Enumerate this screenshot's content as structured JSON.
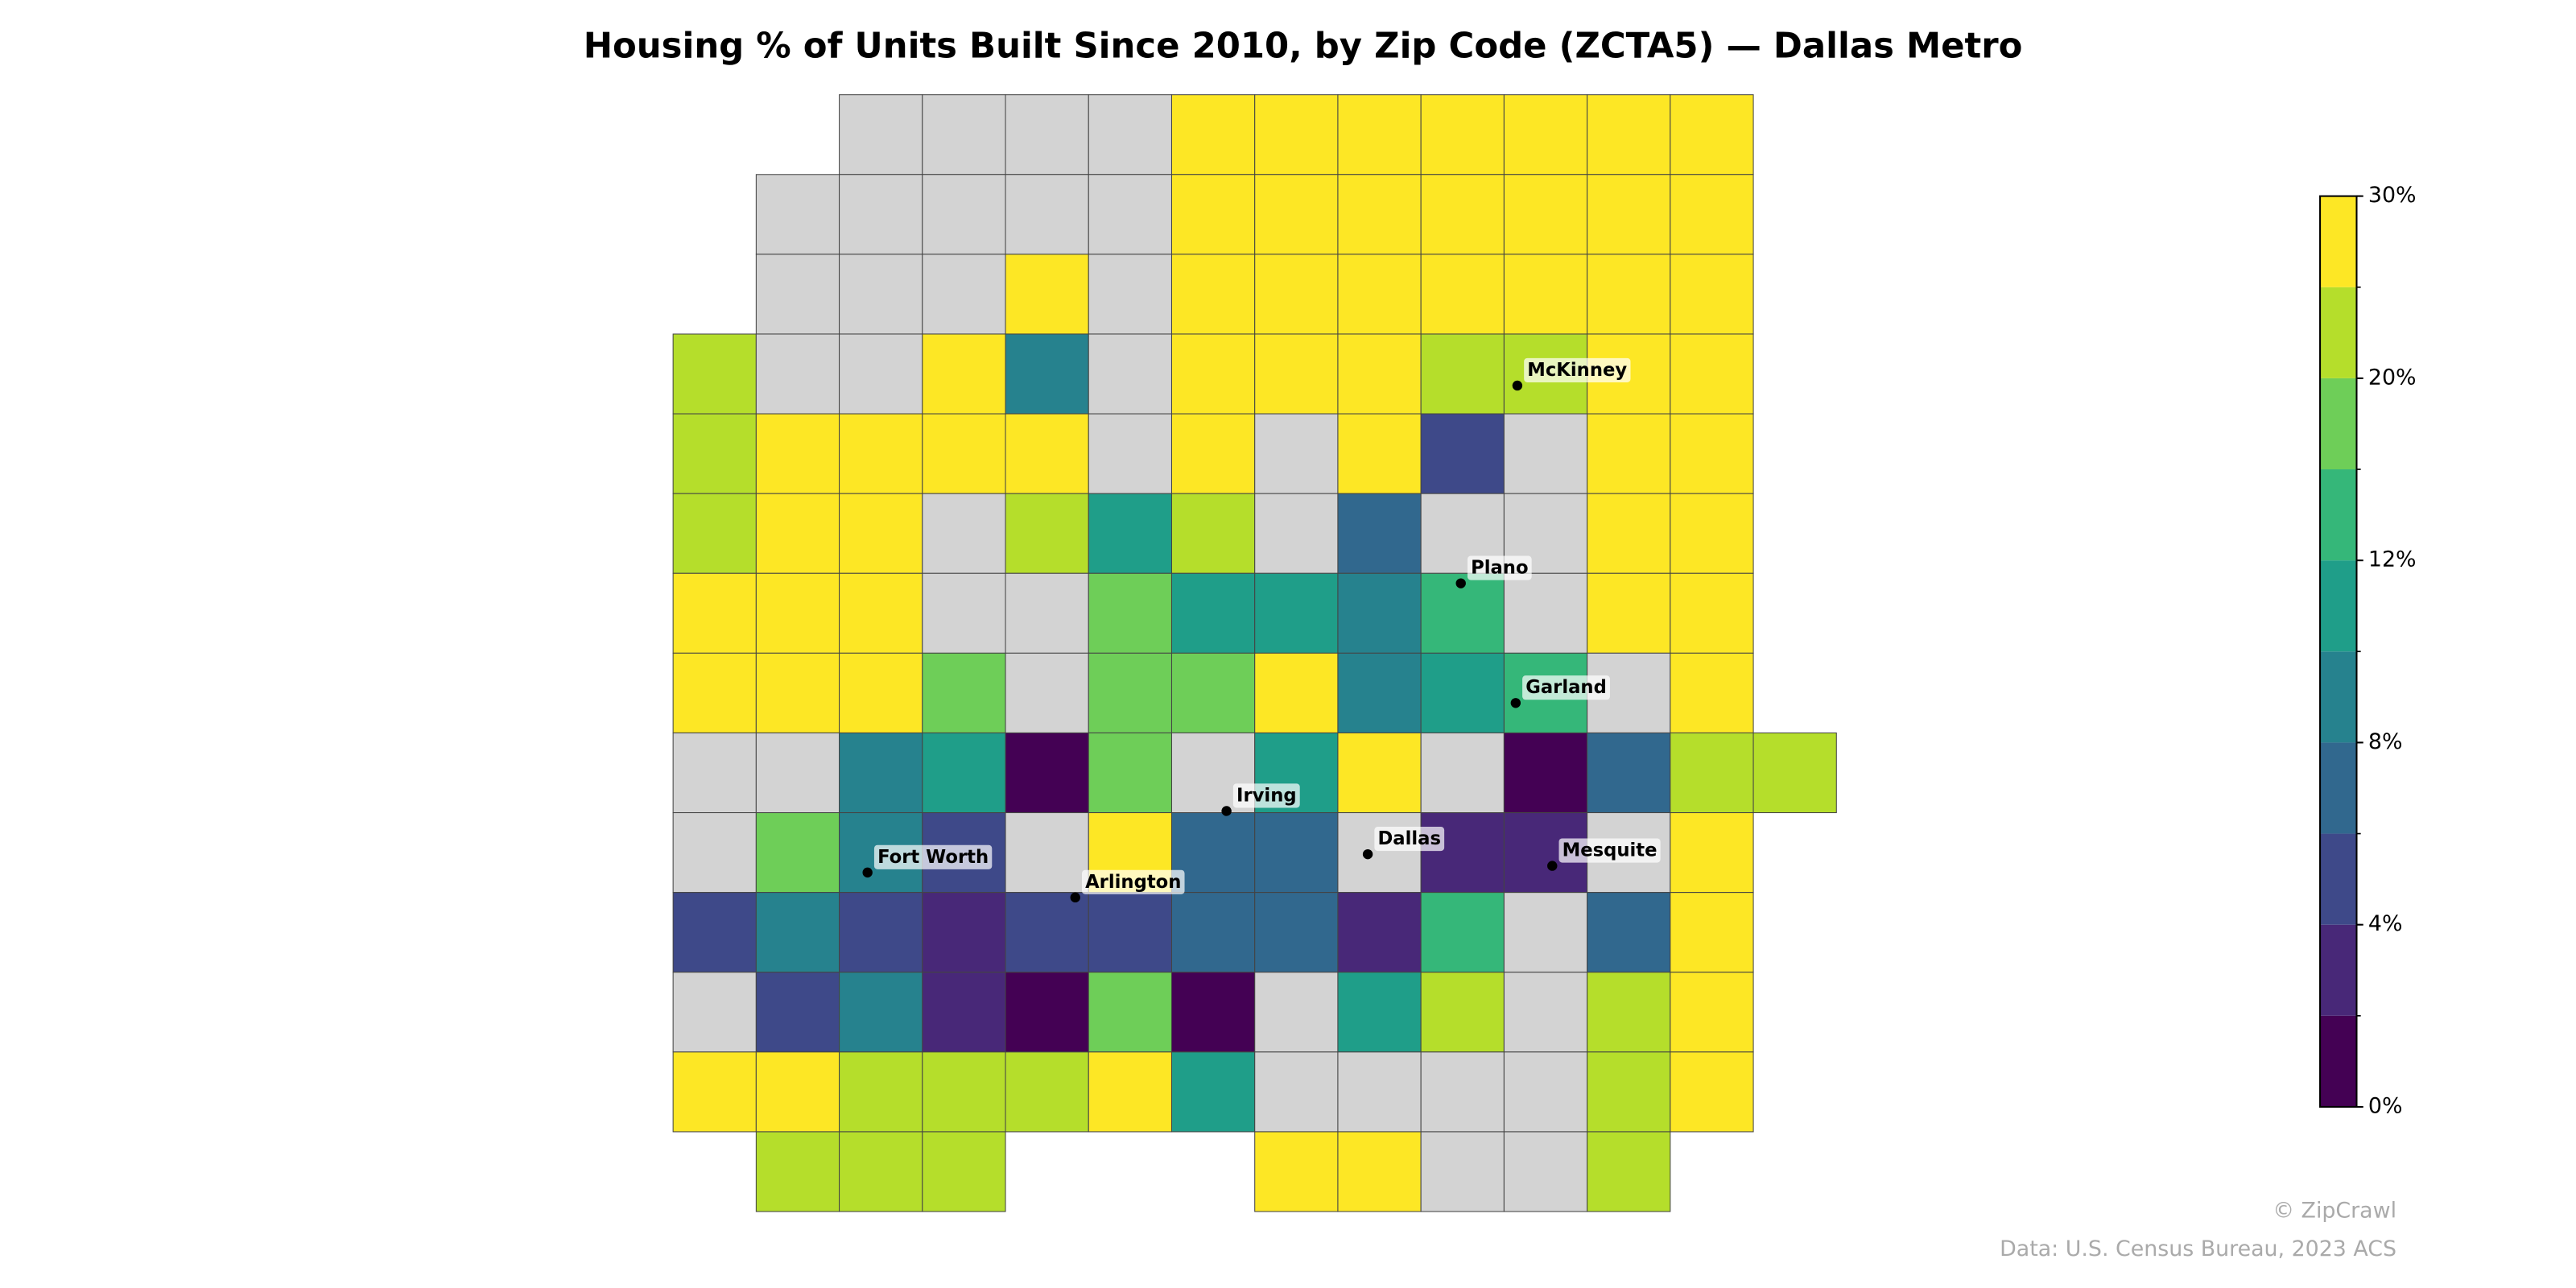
{
  "chart_data": {
    "type": "choropleth",
    "title": "Housing % of Units Built Since 2010, by Zip Code (ZCTA5) — Dallas Metro",
    "no_data_color": "#d3d3d3",
    "zones": [
      null,
      null,
      null,
      null,
      28,
      28,
      28,
      28,
      28,
      28,
      28,
      null,
      null,
      null,
      null,
      null,
      28,
      28,
      28,
      28,
      28,
      28,
      28,
      null,
      null,
      null,
      28,
      null,
      28,
      28,
      28,
      28,
      28,
      28,
      28,
      22,
      null,
      null,
      28,
      9,
      null,
      28,
      28,
      28,
      22,
      22,
      28,
      28,
      22,
      28,
      28,
      28,
      28,
      null,
      28,
      null,
      28,
      5,
      null,
      28,
      28,
      22,
      28,
      28,
      null,
      22,
      11,
      22,
      null,
      7,
      null,
      null,
      28,
      28,
      28,
      28,
      28,
      null,
      null,
      18,
      11,
      11,
      9,
      14,
      null,
      28,
      28,
      28,
      28,
      28,
      18,
      null,
      18,
      18,
      28,
      9,
      11,
      14,
      null,
      28,
      null,
      null,
      9,
      11,
      1,
      18,
      null,
      11,
      28,
      null,
      1,
      7,
      22,
      22,
      null,
      18,
      9,
      5,
      null,
      28,
      7,
      7,
      null,
      3,
      3,
      null,
      28,
      5,
      9,
      5,
      3,
      5,
      5,
      7,
      7,
      3,
      14,
      null,
      7,
      28,
      null,
      5,
      9,
      3,
      1,
      18,
      1,
      null,
      11,
      22,
      null,
      22,
      28,
      28,
      28,
      22,
      22,
      22,
      28,
      11,
      null,
      null,
      null,
      null,
      22,
      28,
      22,
      22,
      22,
      28,
      28,
      null,
      null,
      22
    ],
    "cities": [
      "McKinney",
      "Plano",
      "Garland",
      "Irving",
      "Dallas",
      "Mesquite",
      "Fort Worth",
      "Arlington"
    ],
    "colorbar": {
      "bounds": [
        0,
        2,
        4,
        6,
        8,
        10,
        12,
        16,
        20,
        25,
        30
      ],
      "colors": [
        "#440154",
        "#482878",
        "#3e4989",
        "#31688e",
        "#26828e",
        "#1f9e89",
        "#35b779",
        "#6ece58",
        "#b5de2b",
        "#fde725"
      ],
      "ticks": [
        {
          "value": 0,
          "label": "0%"
        },
        {
          "value": 4,
          "label": "4%"
        },
        {
          "value": 8,
          "label": "8%"
        },
        {
          "value": 12,
          "label": "12%"
        },
        {
          "value": 20,
          "label": "20%"
        },
        {
          "value": 30,
          "label": "30%"
        }
      ]
    },
    "credit": "© ZipCrawl",
    "source": "Data: U.S. Census Bureau, 2023 ACS"
  }
}
